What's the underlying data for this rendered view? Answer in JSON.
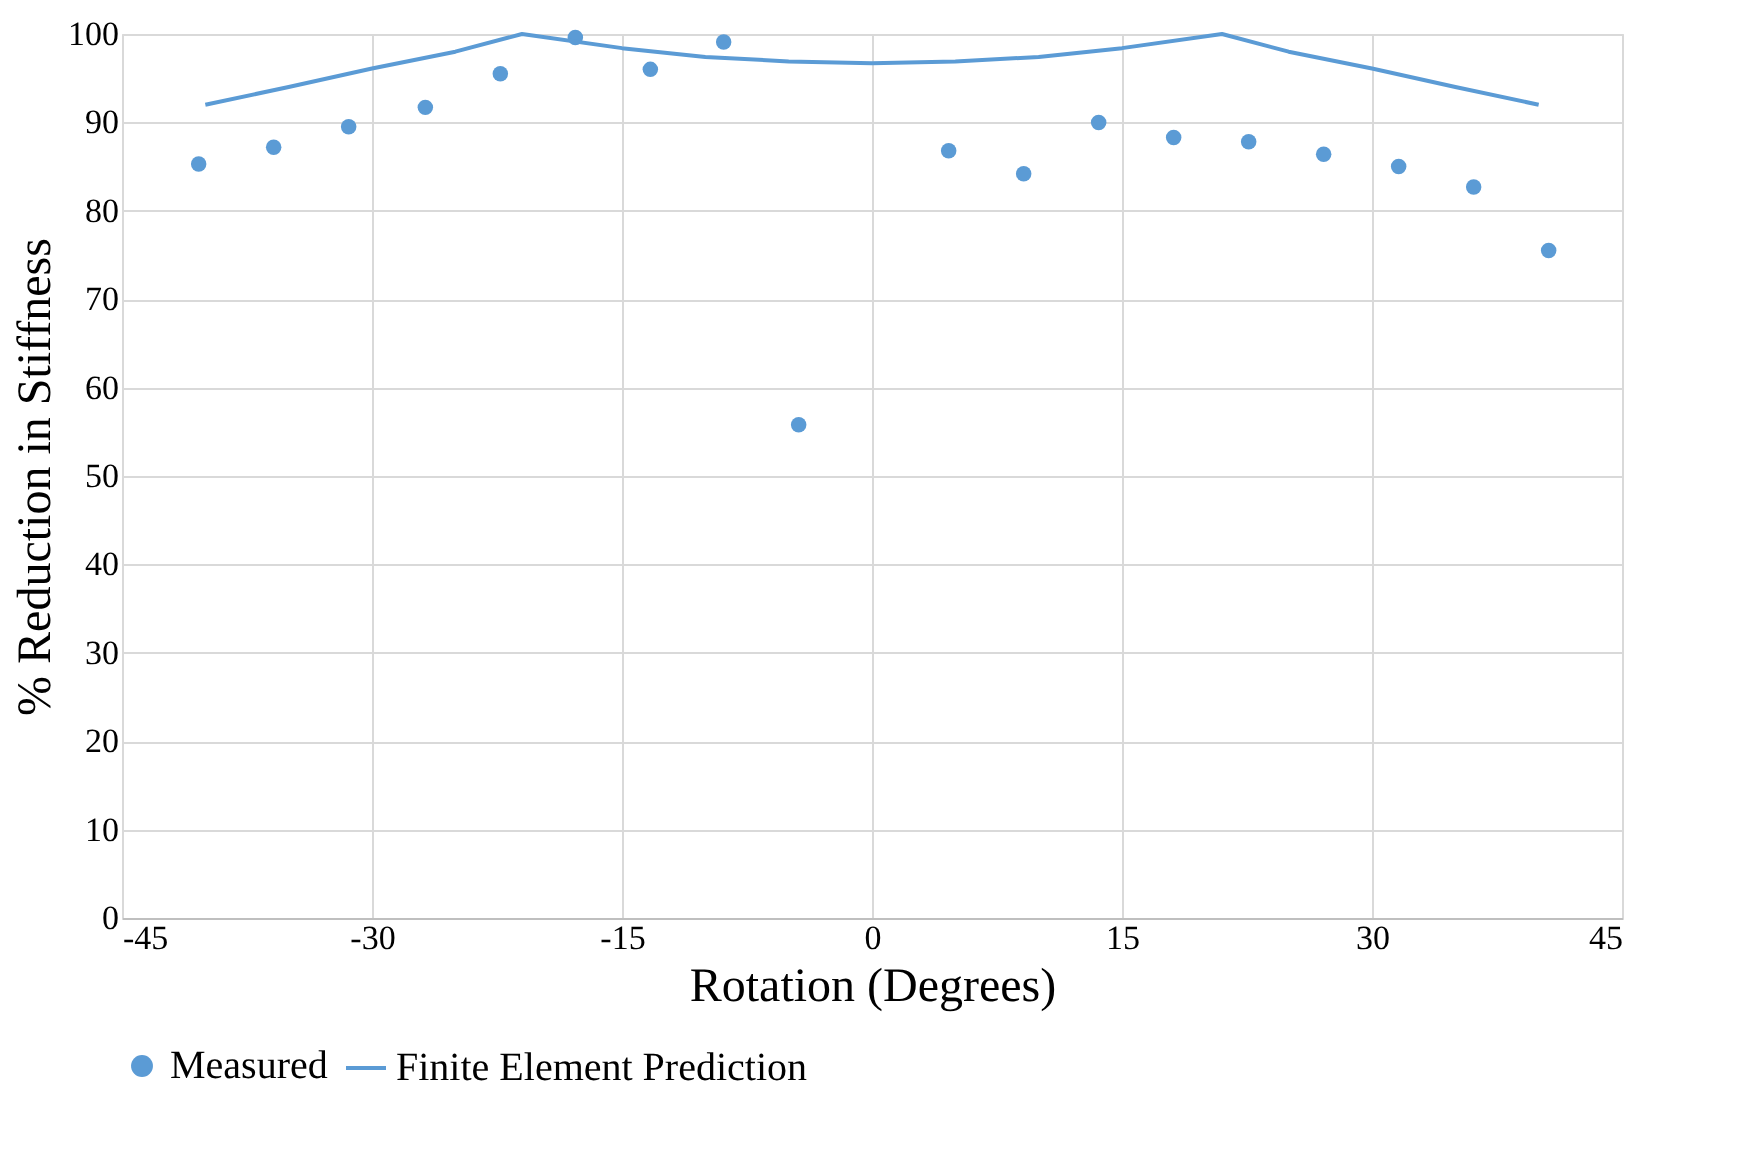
{
  "chart_data": {
    "type": "scatter",
    "xlabel": "Rotation (Degrees)",
    "ylabel": "% Reduction in Stiffness",
    "xlim": [
      -45,
      45
    ],
    "xticks": [
      -45,
      -30,
      -15,
      0,
      15,
      30,
      45
    ],
    "ylim": [
      0,
      100
    ],
    "yticks": [
      0,
      10,
      20,
      30,
      40,
      50,
      60,
      70,
      80,
      90,
      100
    ],
    "grid": true,
    "legend": "bottom",
    "series": [
      {
        "name": "Measured",
        "marker": "circle",
        "color": "#5b9bd5",
        "x": [
          -40.4,
          -35.9,
          -31.4,
          -26.8,
          -22.3,
          -17.8,
          -13.3,
          -8.9,
          -4.4,
          4.6,
          9.1,
          13.6,
          18.1,
          22.6,
          27.1,
          31.6,
          36.1,
          40.6
        ],
        "values": [
          85.3,
          87.2,
          89.5,
          91.7,
          95.5,
          99.6,
          96.0,
          99.1,
          55.8,
          86.8,
          84.2,
          90.0,
          88.3,
          87.8,
          86.4,
          85.0,
          82.7,
          75.5
        ]
      },
      {
        "name": "Finite Element Prediction",
        "type": "line",
        "marker": "none",
        "line_style": "solid",
        "color": "#5b9bd5",
        "x": [
          -40,
          -35,
          -30,
          -25,
          -21,
          -15,
          -10,
          -5,
          0,
          5,
          10,
          15,
          21,
          25,
          30,
          35,
          40
        ],
        "values": [
          92,
          94,
          96.1,
          98,
          100,
          98.4,
          97.4,
          96.9,
          96.7,
          96.9,
          97.4,
          98.4,
          100,
          98,
          96.1,
          94,
          92
        ]
      }
    ]
  }
}
